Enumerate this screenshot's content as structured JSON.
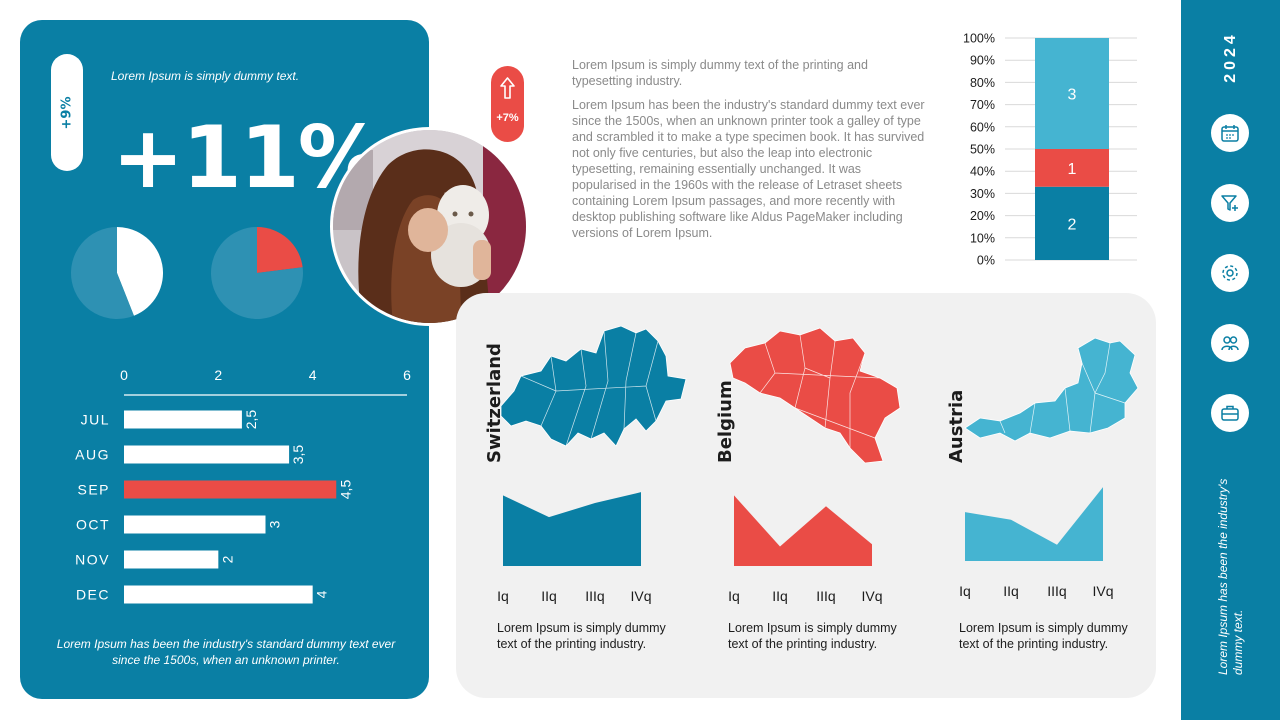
{
  "left": {
    "badge": "+9%",
    "tagline": "Lorem Ipsum is simply dummy text.",
    "big_value": "+11%",
    "footer": "Lorem Ipsum has been the industry's standard dummy text ever since the 1500s, when an unknown printer."
  },
  "red_badge": {
    "value": "+7%"
  },
  "paragraphs": [
    "Lorem Ipsum is simply dummy text of the printing and typesetting industry.",
    "Lorem Ipsum has been the industry's standard dummy text ever since the 1500s, when an unknown printer took a galley of type and scrambled it to make a type specimen book. It has survived not only five centuries, but also the leap into electronic typesetting, remaining essentially unchanged. It was popularised in the 1960s with the release of Letraset sheets containing Lorem Ipsum passages, and more recently with desktop publishing software like Aldus PageMaker including versions of Lorem Ipsum."
  ],
  "countries": [
    {
      "name": "Switzerland",
      "color": "#0a7fa4",
      "desc": "Lorem Ipsum is simply dummy text of the printing industry."
    },
    {
      "name": "Belgium",
      "color": "#ea4c46",
      "desc": "Lorem Ipsum is simply dummy text of the printing industry."
    },
    {
      "name": "Austria",
      "color": "#45b4d1",
      "desc": "Lorem Ipsum is simply dummy text of the printing industry."
    }
  ],
  "sidebar": {
    "year": "2024",
    "icons": [
      "calendar-icon",
      "filter-add-icon",
      "gear-icon",
      "users-icon",
      "briefcase-icon"
    ],
    "note": "Lorem Ipsum has been the industry's dummy text."
  },
  "colors": {
    "blue": "#0a7fa4",
    "red": "#ea4c46",
    "light_blue": "#45b4d1",
    "pie_bg": "#2e91b3"
  },
  "chart_data": [
    {
      "type": "pie",
      "values": [
        44,
        56
      ],
      "colors": [
        "#ffffff",
        "#2e91b3"
      ]
    },
    {
      "type": "pie",
      "values": [
        23,
        77
      ],
      "colors": [
        "#ea4c46",
        "#2e91b3"
      ]
    },
    {
      "type": "bar",
      "orientation": "horizontal",
      "categories": [
        "JUL",
        "AUG",
        "SEP",
        "OCT",
        "NOV",
        "DEC"
      ],
      "values": [
        2.5,
        3.5,
        4.5,
        3,
        2,
        4
      ],
      "value_labels": [
        "2,5",
        "3,5",
        "4,5",
        "3",
        "2",
        "4"
      ],
      "highlight": "SEP",
      "xlim": [
        0,
        6
      ],
      "xticks": [
        0,
        2,
        4,
        6
      ]
    },
    {
      "type": "bar",
      "stacked": true,
      "segments": [
        {
          "label": "2",
          "value": 33,
          "color": "#0a7fa4"
        },
        {
          "label": "1",
          "value": 17,
          "color": "#ea4c46"
        },
        {
          "label": "3",
          "value": 50,
          "color": "#45b4d1"
        }
      ],
      "ylim": [
        0,
        100
      ],
      "yticks": [
        "0%",
        "10%",
        "20%",
        "30%",
        "40%",
        "50%",
        "60%",
        "70%",
        "80%",
        "90%",
        "100%"
      ],
      "grid": true
    },
    {
      "type": "area",
      "series_of": "Switzerland",
      "categories": [
        "Iq",
        "IIq",
        "IIIq",
        "IVq"
      ],
      "values": [
        6.5,
        4.5,
        5.8,
        6.8
      ],
      "color": "#0a7fa4"
    },
    {
      "type": "area",
      "series_of": "Belgium",
      "categories": [
        "Iq",
        "IIq",
        "IIIq",
        "IVq"
      ],
      "values": [
        6.5,
        1.8,
        5.5,
        2.0
      ],
      "color": "#ea4c46"
    },
    {
      "type": "area",
      "series_of": "Austria",
      "categories": [
        "Iq",
        "IIq",
        "IIIq",
        "IVq"
      ],
      "values": [
        4.5,
        3.8,
        1.5,
        6.8
      ],
      "color": "#45b4d1"
    }
  ]
}
